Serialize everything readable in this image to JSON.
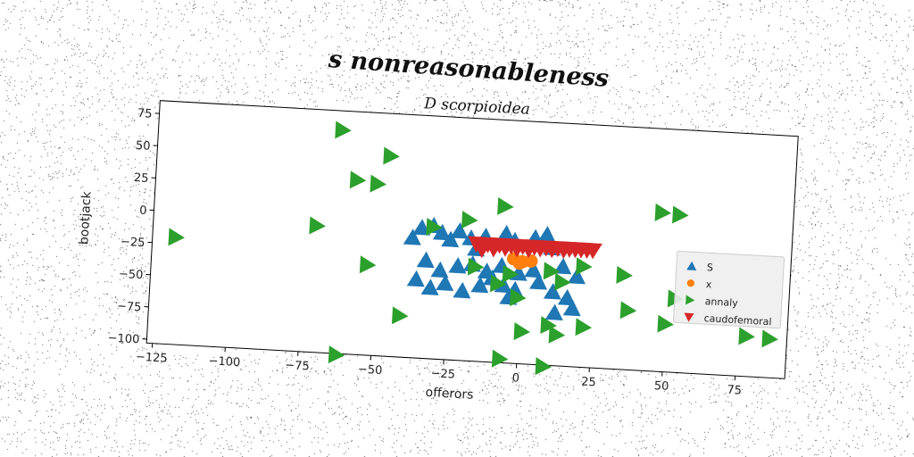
{
  "figure": {
    "suptitle": "s nonreasonableness"
  },
  "chart_data": {
    "type": "scatter",
    "title": "D scorpioidea",
    "xlabel": "offerors",
    "ylabel": "bootjack",
    "xlim": [
      -127,
      92
    ],
    "ylim": [
      -103,
      85
    ],
    "xticks": [
      -125,
      -100,
      -75,
      -50,
      -25,
      0,
      25,
      50,
      75
    ],
    "yticks": [
      75,
      50,
      25,
      0,
      -25,
      -50,
      -75,
      -100
    ],
    "grid": false,
    "legend_position": "center-right",
    "series": [
      {
        "name": "S",
        "marker": "triangle-up",
        "color": "#1f77b4",
        "points": [
          [
            -35,
            -2
          ],
          [
            -31,
            0
          ],
          [
            -28,
            -5
          ],
          [
            -25,
            -10
          ],
          [
            -22,
            -3
          ],
          [
            -18,
            -8
          ],
          [
            -16,
            -16
          ],
          [
            -13,
            -6
          ],
          [
            -6,
            -3
          ],
          [
            -3,
            -8
          ],
          [
            4,
            -5
          ],
          [
            8,
            -2
          ],
          [
            10,
            -12
          ],
          [
            -38,
            -10
          ],
          [
            -33,
            -27
          ],
          [
            -28,
            -34
          ],
          [
            -22,
            -30
          ],
          [
            -17,
            -28
          ],
          [
            -12,
            -33
          ],
          [
            -7,
            -28
          ],
          [
            -1,
            -33
          ],
          [
            4,
            -30
          ],
          [
            14,
            -26
          ],
          [
            19,
            -33
          ],
          [
            -36,
            -42
          ],
          [
            -31,
            -48
          ],
          [
            -26,
            -44
          ],
          [
            -20,
            -49
          ],
          [
            -14,
            -44
          ],
          [
            -10,
            -38
          ],
          [
            -6,
            -43
          ],
          [
            -2,
            -46
          ],
          [
            6,
            -39
          ],
          [
            11,
            -46
          ],
          [
            16,
            -50
          ],
          [
            -4,
            -52
          ],
          [
            12,
            -62
          ],
          [
            18,
            -58
          ]
        ]
      },
      {
        "name": "x",
        "marker": "circle",
        "color": "#ff7f0e",
        "points": [
          [
            -3,
            -22
          ],
          [
            0,
            -24
          ],
          [
            3,
            -23
          ],
          [
            -1,
            -25
          ]
        ]
      },
      {
        "name": "annaly",
        "marker": "triangle-right",
        "color": "#2ca02c",
        "points": [
          [
            -64,
            70
          ],
          [
            -47,
            52
          ],
          [
            -58,
            32
          ],
          [
            -51,
            30
          ],
          [
            -7,
            18
          ],
          [
            -19,
            6
          ],
          [
            -31,
            -1
          ],
          [
            -71,
            -5
          ],
          [
            -119,
            -20
          ],
          [
            -53,
            -33
          ],
          [
            -16,
            -30
          ],
          [
            -4,
            -34
          ],
          [
            -8,
            -42
          ],
          [
            -1,
            -52
          ],
          [
            21,
            -25
          ],
          [
            35,
            -30
          ],
          [
            10,
            -30
          ],
          [
            14,
            -38
          ],
          [
            37,
            -57
          ],
          [
            50,
            -66
          ],
          [
            53,
            -46
          ],
          [
            47,
            20
          ],
          [
            53,
            19
          ],
          [
            -41,
            -71
          ],
          [
            10,
            -72
          ],
          [
            22,
            -72
          ],
          [
            13,
            -79
          ],
          [
            1,
            -78
          ],
          [
            -6,
            -100
          ],
          [
            9,
            -104
          ],
          [
            -62,
            -104
          ],
          [
            78,
            -72
          ],
          [
            86,
            -73
          ]
        ]
      },
      {
        "name": "caudofemoral",
        "marker": "triangle-down",
        "color": "#d62728",
        "points": [
          [
            -16,
            -12
          ],
          [
            -12,
            -12
          ],
          [
            -8,
            -12
          ],
          [
            -4,
            -12
          ],
          [
            0,
            -12
          ],
          [
            4,
            -12
          ],
          [
            8,
            -12
          ],
          [
            12,
            -12
          ],
          [
            16,
            -12
          ],
          [
            20,
            -12
          ],
          [
            24,
            -12
          ],
          [
            -14,
            -16
          ],
          [
            -10,
            -15
          ],
          [
            -6,
            -14
          ],
          [
            -2,
            -14
          ],
          [
            2,
            -14
          ],
          [
            6,
            -13
          ],
          [
            10,
            -13
          ],
          [
            14,
            -13
          ],
          [
            18,
            -12
          ],
          [
            22,
            -12
          ]
        ]
      }
    ]
  }
}
